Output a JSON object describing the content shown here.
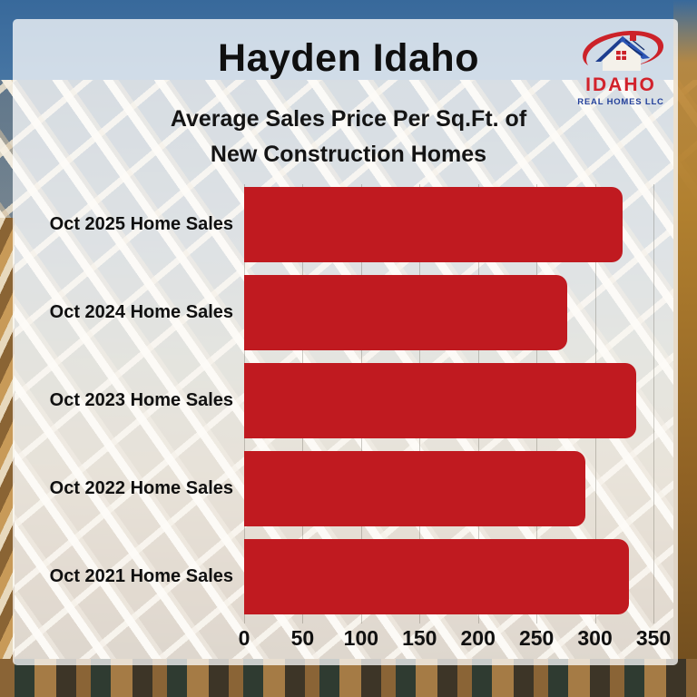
{
  "header": {
    "title": "Hayden Idaho",
    "subtitle_line1": "Average Sales Price Per Sq.Ft. of",
    "subtitle_line2": "New Construction Homes"
  },
  "logo": {
    "name": "IDAHO",
    "tagline": "REAL HOMES LLC",
    "name_color": "#d2222b",
    "tagline_color": "#23409a"
  },
  "chart_data": {
    "type": "bar",
    "orientation": "horizontal",
    "title": "Hayden Idaho",
    "subtitle": "Average Sales Price Per Sq.Ft. of New Construction Homes",
    "categories": [
      "Oct 2025 Home Sales",
      "Oct 2024 Home Sales",
      "Oct 2023 Home Sales",
      "Oct 2022 Home Sales",
      "Oct 2021 Home Sales"
    ],
    "values": [
      324,
      276,
      335,
      292,
      329
    ],
    "xlim": [
      0,
      350
    ],
    "xticks": [
      0,
      50,
      100,
      150,
      200,
      250,
      300,
      350
    ],
    "bar_color": "#c01a20",
    "grid": true,
    "legend": false,
    "xlabel": "",
    "ylabel": ""
  }
}
